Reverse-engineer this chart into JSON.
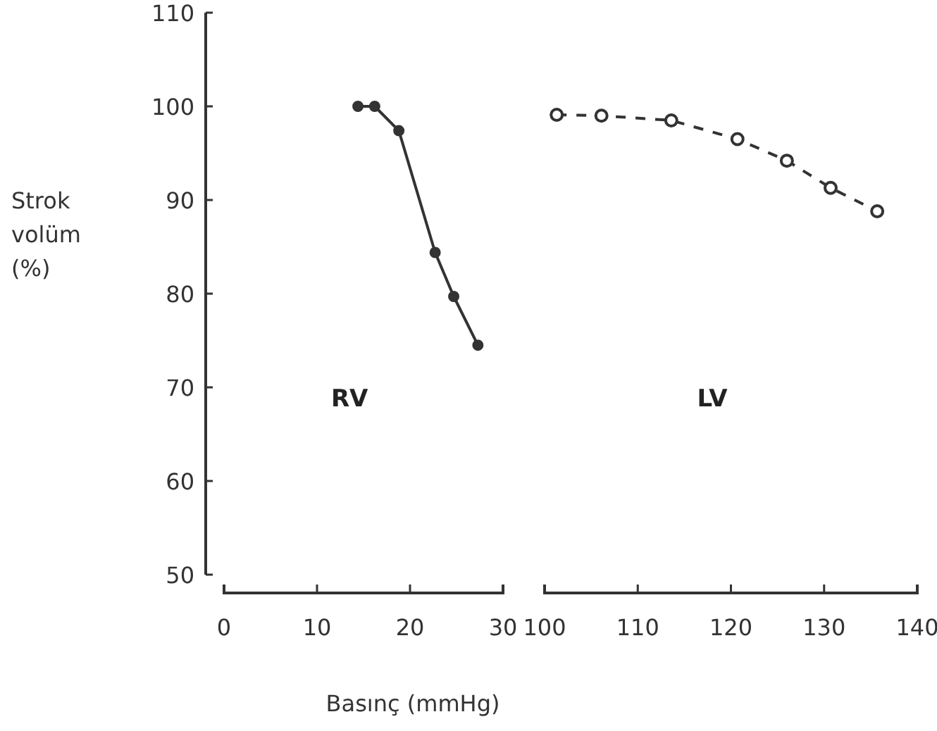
{
  "chart_data": [
    {
      "type": "line",
      "xlabel": "Basınç (mmHg)",
      "ylabel": "Strok volüm (%)",
      "xlim": [
        0,
        30
      ],
      "xticks": [
        0,
        10,
        20,
        30
      ],
      "ylim": [
        50,
        110
      ],
      "yticks": [
        50,
        60,
        70,
        80,
        90,
        100,
        110
      ],
      "marker": "circle",
      "line_style": "solid",
      "series": [
        {
          "name": "RV",
          "color": "#333333",
          "x": [
            14.4,
            16.2,
            18.8,
            22.7,
            24.7,
            27.3
          ],
          "values": [
            100,
            100,
            97.4,
            84.4,
            79.7,
            74.5
          ]
        }
      ]
    },
    {
      "type": "line",
      "xlim": [
        100,
        140
      ],
      "xticks": [
        100,
        110,
        120,
        130,
        140
      ],
      "ylim": [
        50,
        110
      ],
      "tick_labels": "x",
      "marker": "circle",
      "line_style": "dashed",
      "series": [
        {
          "name": "LV",
          "color": "#333333",
          "x": [
            101.3,
            106.1,
            113.6,
            120.7,
            126,
            130.7,
            135.7
          ],
          "values": [
            99.1,
            99,
            98.5,
            96.5,
            94.2,
            91.3,
            88.8
          ]
        }
      ]
    }
  ]
}
